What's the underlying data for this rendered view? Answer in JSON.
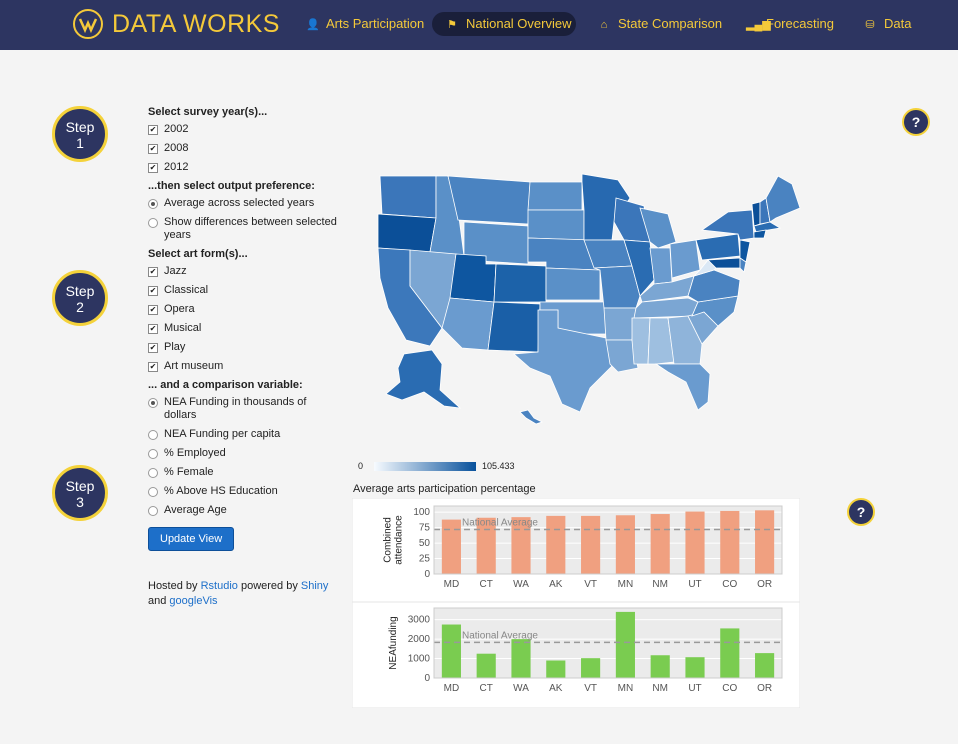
{
  "brand": {
    "name": "DATA WORKS"
  },
  "nav": {
    "items": [
      {
        "label": "Arts Participation",
        "icon": "user-icon",
        "glyph": "👤",
        "active": false
      },
      {
        "label": "National Overview",
        "icon": "flag-icon",
        "glyph": "⚑",
        "active": true
      },
      {
        "label": "State Comparison",
        "icon": "home-icon",
        "glyph": "⌂",
        "active": false
      },
      {
        "label": "Forecasting",
        "icon": "signal-icon",
        "glyph": "▂▄▆",
        "active": false
      },
      {
        "label": "Data",
        "icon": "database-icon",
        "glyph": "⛁",
        "active": false
      }
    ]
  },
  "steps": [
    {
      "label": "Step",
      "num": "1"
    },
    {
      "label": "Step",
      "num": "2"
    },
    {
      "label": "Step",
      "num": "3"
    }
  ],
  "help": {
    "glyph": "?"
  },
  "form": {
    "year_label": "Select survey year(s)...",
    "years": [
      "2002",
      "2008",
      "2012"
    ],
    "output_label": "...then select output preference:",
    "outputs": [
      {
        "label": "Average across selected years",
        "selected": true
      },
      {
        "label": "Show differences between selected years",
        "selected": false
      }
    ],
    "artform_label": "Select art form(s)...",
    "artforms": [
      "Jazz",
      "Classical",
      "Opera",
      "Musical",
      "Play",
      "Art museum"
    ],
    "comparison_label": "... and a comparison variable:",
    "comparisons": [
      {
        "label": "NEA Funding in thousands of dollars",
        "selected": true
      },
      {
        "label": "NEA Funding per capita",
        "selected": false
      },
      {
        "label": "% Employed",
        "selected": false
      },
      {
        "label": "% Female",
        "selected": false
      },
      {
        "label": "% Above HS Education",
        "selected": false
      },
      {
        "label": "Average Age",
        "selected": false
      }
    ],
    "update_button": "Update View"
  },
  "credits": {
    "hosted_by": "Hosted by",
    "rstudio": "Rstudio",
    "powered_by": "powered by",
    "shiny": "Shiny",
    "and": "and",
    "googlevis": "googleVis"
  },
  "map_legend": {
    "min": "0",
    "max": "105.433",
    "color_low": "#f7fbff",
    "color_high": "#08519c"
  },
  "chart_section_title": "Average arts participation percentage",
  "chart_data": [
    {
      "type": "bar",
      "categories": [
        "MD",
        "CT",
        "WA",
        "AK",
        "VT",
        "MN",
        "NM",
        "UT",
        "CO",
        "OR"
      ],
      "values": [
        88,
        91,
        92,
        94,
        94,
        95,
        97,
        101,
        102,
        103
      ],
      "ylabel": "Combined attendance",
      "ylim": [
        0,
        110
      ],
      "yticks": [
        0,
        25,
        50,
        75,
        100
      ],
      "reference_line": {
        "label": "National Average",
        "value": 72
      },
      "color": "#f0a080"
    },
    {
      "type": "bar",
      "categories": [
        "MD",
        "CT",
        "WA",
        "AK",
        "VT",
        "MN",
        "NM",
        "UT",
        "CO",
        "OR"
      ],
      "values": [
        2750,
        1250,
        2000,
        900,
        1020,
        3400,
        1170,
        1070,
        2550,
        1280
      ],
      "ylabel": "NEAfunding",
      "ylim": [
        0,
        3600
      ],
      "yticks": [
        0,
        1000,
        2000,
        3000
      ],
      "reference_line": {
        "label": "National Average",
        "value": 1830
      },
      "color": "#7acc50"
    }
  ]
}
